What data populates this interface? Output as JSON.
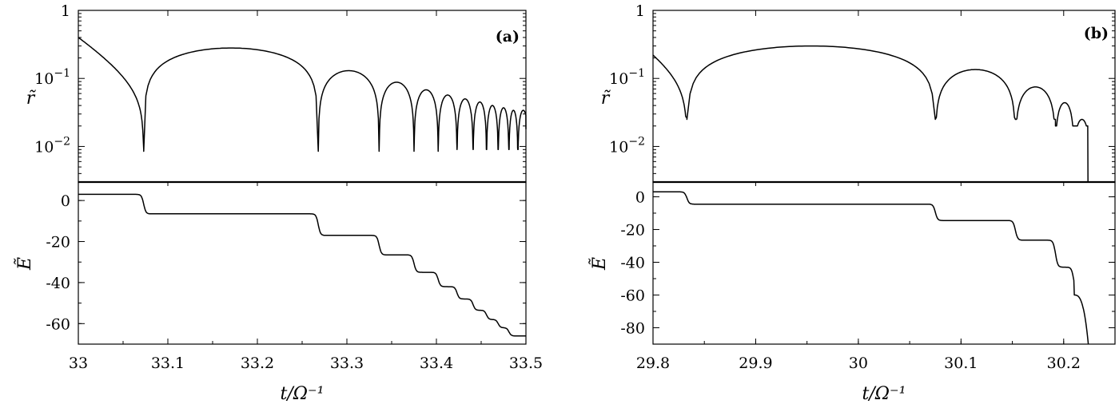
{
  "chart_data": [
    {
      "type": "line",
      "label": "(a)",
      "xlabel": "t/Ω⁻¹",
      "xlim": [
        33.0,
        33.5
      ],
      "xticks": [
        "33",
        "33.1",
        "33.2",
        "33.3",
        "33.4",
        "33.5"
      ],
      "xtick_values": [
        33.0,
        33.1,
        33.2,
        33.3,
        33.4,
        33.5
      ],
      "panels": [
        {
          "ylabel": "r̃",
          "scale": "log",
          "ylim": [
            0.003,
            1
          ],
          "yticks": [
            "1",
            "10⁻¹",
            "10⁻²"
          ],
          "ytick_values": [
            1,
            0.1,
            0.01
          ],
          "dips": [
            33.073,
            33.268,
            33.336,
            33.375,
            33.402,
            33.423,
            33.441,
            33.456,
            33.469,
            33.481,
            33.491
          ],
          "dip_minima": [
            0.009,
            0.0085,
            0.0085,
            0.0085,
            0.009,
            0.009,
            0.009,
            0.009,
            0.009,
            0.009,
            0.009
          ],
          "lobe_peaks": [
            0.28,
            0.13,
            0.088,
            0.068,
            0.057,
            0.05,
            0.045,
            0.04,
            0.037,
            0.034
          ],
          "start_value": 0.4,
          "end_value": 0.018
        },
        {
          "ylabel": "Ẽ",
          "scale": "linear",
          "ylim": [
            -70,
            9
          ],
          "yticks": [
            "0",
            "-20",
            "-40",
            "-60"
          ],
          "ytick_values": [
            0,
            -20,
            -40,
            -60
          ],
          "step_times": [
            33.073,
            33.268,
            33.336,
            33.375,
            33.402,
            33.423,
            33.441,
            33.456,
            33.469,
            33.481
          ],
          "levels": [
            3,
            -6.5,
            -17,
            -26.5,
            -35,
            -42,
            -48,
            -53.5,
            -58,
            -62,
            -66
          ]
        }
      ]
    },
    {
      "type": "line",
      "label": "(b)",
      "xlabel": "t/Ω⁻¹",
      "xlim": [
        29.8,
        30.25
      ],
      "xticks": [
        "29.8",
        "29.9",
        "30",
        "30.1",
        "30.2"
      ],
      "xtick_values": [
        29.8,
        29.9,
        30.0,
        30.1,
        30.2
      ],
      "panels": [
        {
          "ylabel": "r̃",
          "scale": "log",
          "ylim": [
            0.003,
            1
          ],
          "yticks": [
            "1",
            "10⁻¹",
            "10⁻²"
          ],
          "ytick_values": [
            1,
            0.1,
            0.01
          ],
          "dips": [
            29.833,
            30.075,
            30.153,
            30.192,
            30.21
          ],
          "dip_minima": [
            0.027,
            0.025,
            0.025,
            0.028,
            0.02
          ],
          "lobe_peaks": [
            0.3,
            0.135,
            0.075,
            0.044,
            0.025
          ],
          "start_value": 0.22,
          "end_time": 30.224
        },
        {
          "ylabel": "Ẽ",
          "scale": "linear",
          "ylim": [
            -90,
            9
          ],
          "yticks": [
            "0",
            "-20",
            "-40",
            "-60",
            "-80"
          ],
          "ytick_values": [
            0,
            -20,
            -40,
            -60,
            -80
          ],
          "step_times": [
            29.833,
            30.075,
            30.153,
            30.192,
            30.21
          ],
          "levels": [
            3,
            -4.5,
            -14.5,
            -26.5,
            -43,
            -60
          ],
          "end_time": 30.224,
          "end_value": -90
        }
      ]
    }
  ]
}
